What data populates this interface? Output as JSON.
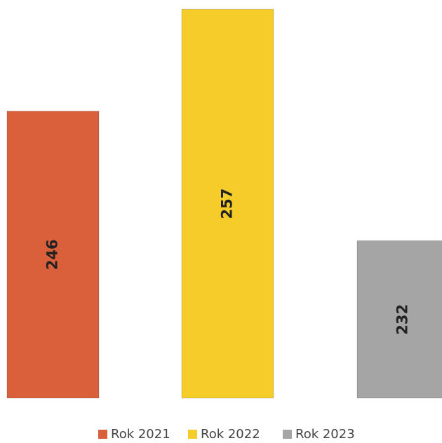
{
  "chart_data": {
    "type": "bar",
    "categories": [
      null
    ],
    "series": [
      {
        "name": "Rok 2021",
        "color": "#d9603b",
        "values": [
          246
        ]
      },
      {
        "name": "Rok 2022",
        "color": "#f5cc2a",
        "values": [
          257
        ]
      },
      {
        "name": "Rok 2023",
        "color": "#a5a5a5",
        "values": [
          232
        ]
      }
    ],
    "ylim": [
      215,
      258
    ],
    "legend": "bottom"
  }
}
